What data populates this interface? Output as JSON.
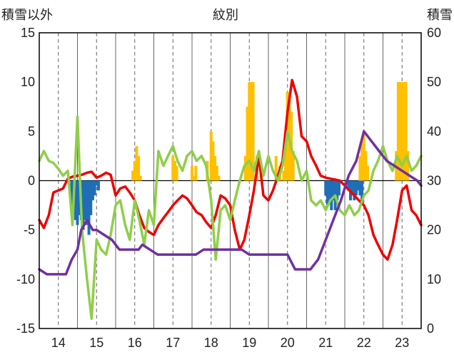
{
  "chart_data": {
    "type": "bar+line",
    "title": "",
    "left_axis_title": "積雪以外",
    "right_axis_title": "積雪",
    "center_label": "紋別",
    "y_left": {
      "min": -15,
      "max": 15,
      "ticks": [
        "15",
        "10",
        "5",
        "0",
        "-5",
        "-10",
        "-15"
      ]
    },
    "y_right": {
      "min": 0,
      "max": 60,
      "ticks": [
        "60",
        "50",
        "40",
        "30",
        "20",
        "10",
        "0"
      ]
    },
    "x_ticks": [
      "14",
      "15",
      "16",
      "17",
      "18",
      "19",
      "20",
      "21",
      "22",
      "23"
    ],
    "x_tick_positions": [
      14,
      15,
      16,
      17,
      18,
      19,
      20,
      21,
      22,
      23
    ],
    "x_range": [
      13.5,
      23.5
    ],
    "grid": {
      "dashed_vertical_at_ticks": true,
      "solid_vertical_between": true
    },
    "colors": {
      "red": "#ee0000",
      "light_green": "#8fce4a",
      "purple": "#7030a0",
      "orange": "#ffc000",
      "blue": "#1f6eb7",
      "axis": "#000000",
      "grid": "#666666"
    },
    "series": [
      {
        "color_key": "red",
        "axis": "left",
        "x": [
          13.5,
          13.62,
          13.75,
          13.87,
          14.0,
          14.12,
          14.25,
          14.37,
          14.5,
          14.62,
          14.75,
          14.87,
          15.0,
          15.12,
          15.25,
          15.37,
          15.5,
          15.62,
          15.75,
          15.87,
          16.0,
          16.12,
          16.25,
          16.37,
          16.5,
          16.62,
          16.75,
          16.87,
          17.0,
          17.12,
          17.25,
          17.37,
          17.5,
          17.62,
          17.75,
          17.87,
          18.0,
          18.12,
          18.25,
          18.37,
          18.5,
          18.62,
          18.75,
          18.87,
          19.0,
          19.12,
          19.25,
          19.37,
          19.5,
          19.62,
          19.75,
          19.87,
          20.0,
          20.12,
          20.25,
          20.37,
          20.5,
          20.62,
          20.75,
          20.87,
          21.0,
          21.12,
          21.25,
          21.37,
          21.5,
          21.62,
          21.75,
          21.87,
          22.0,
          22.12,
          22.25,
          22.37,
          22.5,
          22.62,
          22.75,
          22.87,
          23.0,
          23.12,
          23.25,
          23.37,
          23.5
        ],
        "y": [
          -4.0,
          -4.8,
          -3.5,
          -1.2,
          -1.0,
          -0.8,
          0.2,
          0.4,
          0.5,
          0.6,
          0.8,
          0.9,
          0.3,
          0.5,
          0.8,
          0.6,
          -1.5,
          -0.8,
          -0.6,
          -1.2,
          -2.0,
          -3.5,
          -4.8,
          -5.2,
          -5.5,
          -4.5,
          -3.8,
          -3.2,
          -2.5,
          -2.0,
          -1.5,
          -1.8,
          -2.5,
          -3.2,
          -3.5,
          -4.2,
          -4.8,
          -3.5,
          -1.5,
          -1.8,
          -2.5,
          -5.0,
          -7.0,
          -6.0,
          -3.5,
          -1.0,
          2.5,
          -1.5,
          -2.0,
          -1.0,
          0.5,
          2.0,
          7.0,
          10.2,
          8.5,
          4.5,
          4.0,
          2.5,
          1.5,
          0.5,
          0.3,
          0.2,
          0.1,
          0.0,
          -0.5,
          -1.0,
          -1.5,
          -2.0,
          -2.5,
          -3.5,
          -5.5,
          -6.5,
          -7.5,
          -8.0,
          -6.5,
          -4.0,
          -1.0,
          -0.5,
          -3.0,
          -3.5,
          -4.5
        ]
      },
      {
        "color_key": "light_green",
        "axis": "left",
        "x": [
          13.5,
          13.62,
          13.75,
          13.87,
          14.0,
          14.12,
          14.25,
          14.37,
          14.5,
          14.62,
          14.75,
          14.87,
          15.0,
          15.12,
          15.25,
          15.37,
          15.5,
          15.62,
          15.75,
          15.87,
          16.0,
          16.12,
          16.25,
          16.37,
          16.5,
          16.62,
          16.75,
          16.87,
          17.0,
          17.12,
          17.25,
          17.37,
          17.5,
          17.62,
          17.75,
          17.87,
          18.0,
          18.12,
          18.25,
          18.37,
          18.5,
          18.62,
          18.75,
          18.87,
          19.0,
          19.12,
          19.25,
          19.37,
          19.5,
          19.62,
          19.75,
          19.87,
          20.0,
          20.12,
          20.25,
          20.37,
          20.5,
          20.62,
          20.75,
          20.87,
          21.0,
          21.12,
          21.25,
          21.37,
          21.5,
          21.62,
          21.75,
          21.87,
          22.0,
          22.12,
          22.25,
          22.37,
          22.5,
          22.62,
          22.75,
          22.87,
          23.0,
          23.12,
          23.25,
          23.37,
          23.5
        ],
        "y": [
          2.0,
          3.0,
          2.0,
          1.8,
          1.2,
          0.5,
          1.0,
          -4.5,
          6.5,
          -5.0,
          -10.0,
          -14.0,
          -6.0,
          -7.0,
          -7.5,
          -5.5,
          -2.5,
          -2.0,
          -4.5,
          -6.0,
          -2.0,
          -4.0,
          -6.5,
          -3.0,
          -4.5,
          3.0,
          1.5,
          2.5,
          3.5,
          2.0,
          1.0,
          2.5,
          3.0,
          2.0,
          2.5,
          1.5,
          -2.0,
          -8.0,
          -3.0,
          -2.5,
          -4.0,
          -2.0,
          0.0,
          1.5,
          2.0,
          1.0,
          3.0,
          0.5,
          2.5,
          1.0,
          0.0,
          1.5,
          5.0,
          3.0,
          2.0,
          0.0,
          1.0,
          -2.0,
          -2.5,
          -2.0,
          -3.0,
          -2.0,
          -1.5,
          -3.0,
          -3.5,
          -2.5,
          -3.5,
          -3.0,
          -1.5,
          -1.0,
          1.0,
          2.0,
          3.5,
          2.0,
          1.0,
          2.5,
          1.5,
          2.5,
          1.0,
          1.5,
          2.5
        ]
      },
      {
        "color_key": "purple",
        "axis": "right",
        "x": [
          13.5,
          13.7,
          13.8,
          14.1,
          14.2,
          14.35,
          14.5,
          14.6,
          14.75,
          14.9,
          15.0,
          15.2,
          15.4,
          15.6,
          15.8,
          16.1,
          16.2,
          16.4,
          16.6,
          16.8,
          17.0,
          17.2,
          17.4,
          17.6,
          17.8,
          18.0,
          18.2,
          18.4,
          18.6,
          18.8,
          19.0,
          19.2,
          19.4,
          19.6,
          19.8,
          20.0,
          20.2,
          20.4,
          20.6,
          20.8,
          21.0,
          21.2,
          21.4,
          21.6,
          21.8,
          22.0,
          22.2,
          22.4,
          22.6,
          22.8,
          23.0,
          23.2,
          23.4,
          23.5
        ],
        "y": [
          12.0,
          11.0,
          11.0,
          11.0,
          11.0,
          14.0,
          16.0,
          20.0,
          22.0,
          20.0,
          20.0,
          19.0,
          18.0,
          16.0,
          16.0,
          16.0,
          17.0,
          16.0,
          15.0,
          15.0,
          15.0,
          15.0,
          15.0,
          15.0,
          16.0,
          16.0,
          16.0,
          16.0,
          16.0,
          16.0,
          15.0,
          15.0,
          15.0,
          15.0,
          15.0,
          15.0,
          12.0,
          12.0,
          12.0,
          14.0,
          18.0,
          22.0,
          26.0,
          31.0,
          34.0,
          40.0,
          38.0,
          36.0,
          34.0,
          33.0,
          32.0,
          31.0,
          30.0,
          29.0
        ]
      }
    ],
    "bars_right_axis": [
      {
        "color_key": "orange",
        "x": [
          15.95,
          16.0,
          16.05,
          16.1,
          16.15,
          17.0,
          17.05,
          17.1,
          17.5,
          17.55,
          17.6,
          17.9,
          18.0,
          18.05,
          18.1,
          18.15,
          18.2,
          18.25,
          18.9,
          18.95,
          19.0,
          19.05,
          19.1,
          19.2,
          19.7,
          19.8,
          19.9,
          19.95,
          20.0,
          20.05,
          20.1,
          20.15,
          21.9,
          21.95,
          22.0,
          22.05,
          22.1,
          22.85,
          22.9,
          22.95,
          23.0,
          23.05,
          23.1,
          23.15
        ],
        "values": [
          32,
          34,
          37,
          35,
          31,
          35,
          34,
          33,
          33,
          31,
          33,
          34,
          40,
          38,
          35,
          33,
          31,
          30,
          35,
          45,
          50,
          50,
          50,
          35,
          35,
          33,
          32,
          38,
          48,
          48,
          44,
          36,
          35,
          38,
          40,
          36,
          33,
          36,
          50,
          50,
          50,
          50,
          50,
          36
        ]
      },
      {
        "color_key": "blue",
        "x": [
          14.35,
          14.4,
          14.45,
          14.5,
          14.55,
          14.6,
          14.65,
          14.7,
          14.75,
          14.8,
          14.85,
          14.9,
          14.95,
          15.0,
          15.05,
          21.0,
          21.05,
          21.1,
          21.15,
          21.2,
          21.25,
          21.3,
          21.35,
          21.6,
          21.65,
          21.7,
          21.75,
          21.8,
          21.85,
          21.9,
          21.95
        ],
        "values": [
          25,
          26,
          22,
          21,
          23,
          22,
          20,
          22,
          21,
          19,
          23,
          26,
          27,
          29,
          28,
          27,
          25,
          26,
          24,
          26,
          24,
          26,
          27,
          28,
          26,
          27,
          26,
          27,
          28,
          27,
          25
        ]
      }
    ]
  }
}
